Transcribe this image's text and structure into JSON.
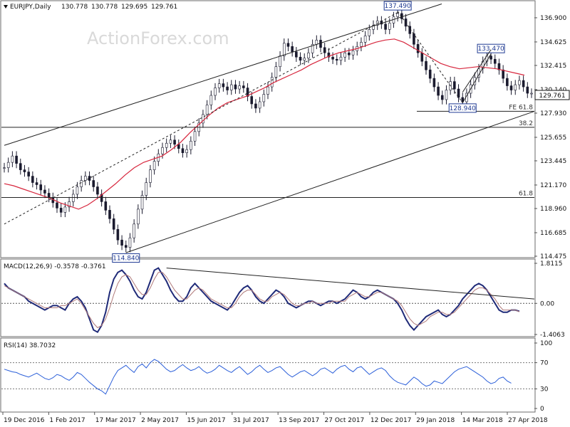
{
  "chart_data": [
    {
      "type": "candlestick",
      "panel": "price",
      "header": "EURJPY,Daily",
      "ohlc": [
        "130.778",
        "130.778",
        "129.695",
        "129.761"
      ],
      "watermark": "ActionForex.com",
      "current_price": "129.761",
      "ylim": [
        114.475,
        137.9
      ],
      "y_ticks": [
        "136.900",
        "134.625",
        "132.415",
        "130.140",
        "127.930",
        "125.655",
        "123.445",
        "121.170",
        "118.960",
        "116.685",
        "114.475"
      ],
      "x_ticks": [
        "19 Dec 2016",
        "1 Feb 2017",
        "17 Mar 2017",
        "2 May 2017",
        "15 Jun 2017",
        "31 Jul 2017",
        "13 Sep 2017",
        "27 Oct 2017",
        "12 Dec 2017",
        "29 Jan 2018",
        "14 Mar 2018",
        "27 Apr 2018"
      ],
      "swing_labels": [
        {
          "text": "114.840",
          "price": 114.84
        },
        {
          "text": "137.490",
          "price": 137.49
        },
        {
          "text": "128.940",
          "price": 128.94
        },
        {
          "text": "133.470",
          "price": 133.47
        }
      ],
      "levels": [
        {
          "label": "FE 61.8",
          "price": 128.1
        },
        {
          "label": "38.2",
          "price": 126.6
        },
        {
          "label": "61.8",
          "price": 120.0
        }
      ],
      "close_series": [
        122.8,
        123.3,
        123.9,
        123.2,
        122.6,
        122.4,
        122.0,
        121.4,
        121.2,
        120.7,
        120.4,
        120.0,
        119.5,
        119.0,
        118.6,
        119.1,
        119.6,
        120.3,
        121.0,
        121.6,
        122.0,
        121.6,
        121.0,
        120.3,
        119.6,
        118.8,
        118.0,
        117.0,
        116.0,
        115.5,
        115.3,
        116.2,
        117.5,
        118.9,
        120.2,
        121.4,
        122.6,
        123.4,
        124.1,
        124.7,
        125.1,
        125.4,
        125.0,
        124.6,
        124.2,
        124.5,
        125.3,
        126.2,
        127.0,
        127.8,
        128.7,
        129.6,
        130.3,
        130.7,
        130.4,
        130.1,
        130.6,
        130.2,
        130.5,
        130.3,
        129.5,
        128.8,
        128.4,
        129.0,
        129.7,
        130.4,
        131.3,
        132.3,
        133.3,
        134.5,
        134.2,
        133.7,
        133.2,
        132.9,
        133.1,
        133.6,
        134.4,
        134.8,
        134.1,
        133.6,
        133.2,
        133.0,
        132.9,
        133.2,
        133.6,
        133.4,
        133.8,
        134.2,
        134.6,
        135.2,
        135.8,
        136.2,
        136.6,
        136.3,
        135.8,
        136.4,
        137.0,
        137.3,
        136.8,
        136.1,
        135.4,
        134.4,
        133.6,
        132.8,
        132.0,
        131.2,
        130.4,
        129.6,
        129.2,
        130.1,
        130.9,
        130.2,
        129.4,
        129.0,
        129.8,
        130.6,
        131.3,
        132.1,
        132.8,
        133.3,
        133.0,
        132.6,
        132.0,
        131.2,
        130.5,
        130.1,
        130.6,
        131.0,
        130.4,
        129.8,
        129.8
      ],
      "moving_average_55": [
        121.3,
        121.1,
        120.8,
        120.5,
        120.2,
        119.9,
        119.5,
        119.2,
        118.9,
        119.3,
        119.9,
        120.6,
        121.3,
        122.1,
        122.8,
        123.3,
        123.6,
        123.9,
        124.5,
        125.2,
        126.1,
        126.9,
        127.7,
        128.4,
        128.9,
        129.2,
        129.5,
        129.9,
        130.3,
        130.8,
        131.2,
        131.6,
        132.0,
        132.5,
        132.9,
        133.3,
        133.6,
        133.8,
        134.0,
        134.3,
        134.6,
        134.8,
        134.9,
        134.6,
        134.1,
        133.6,
        133.1,
        132.6,
        132.3,
        132.1,
        132.2,
        132.3,
        132.2,
        132.1,
        131.9,
        131.7,
        131.5
      ]
    },
    {
      "type": "line",
      "panel": "macd",
      "header": "MACD(12,26,9) -0.3578 -0.3761",
      "ylim": [
        -1.4063,
        1.8115
      ],
      "y_ticks": [
        "1.8115",
        "0.00",
        "-1.4063"
      ],
      "series": [
        {
          "values": [
            0.9,
            0.7,
            0.6,
            0.5,
            0.4,
            0.3,
            0.1,
            0.0,
            -0.1,
            -0.2,
            -0.3,
            -0.2,
            -0.1,
            -0.1,
            -0.2,
            -0.3,
            0.0,
            0.2,
            0.3,
            0.1,
            -0.2,
            -0.7,
            -1.2,
            -1.3,
            -1.0,
            -0.4,
            0.5,
            1.1,
            1.4,
            1.5,
            1.3,
            1.0,
            0.6,
            0.3,
            0.2,
            0.5,
            1.0,
            1.5,
            1.6,
            1.3,
            1.0,
            0.6,
            0.3,
            0.1,
            0.1,
            0.3,
            0.7,
            0.9,
            0.7,
            0.5,
            0.3,
            0.1,
            0.0,
            -0.1,
            -0.2,
            -0.3,
            -0.1,
            0.2,
            0.5,
            0.7,
            0.8,
            0.6,
            0.3,
            0.1,
            0.0,
            0.2,
            0.4,
            0.6,
            0.5,
            0.3,
            0.0,
            -0.1,
            -0.2,
            -0.1,
            0.0,
            0.1,
            0.1,
            0.0,
            -0.1,
            0.0,
            0.1,
            0.1,
            0.0,
            0.1,
            0.2,
            0.4,
            0.6,
            0.5,
            0.3,
            0.2,
            0.3,
            0.5,
            0.6,
            0.5,
            0.4,
            0.3,
            0.2,
            0.0,
            -0.3,
            -0.7,
            -1.0,
            -1.2,
            -1.0,
            -0.8,
            -0.6,
            -0.5,
            -0.4,
            -0.3,
            -0.5,
            -0.6,
            -0.5,
            -0.3,
            -0.1,
            0.2,
            0.4,
            0.6,
            0.8,
            0.9,
            0.8,
            0.6,
            0.3,
            0.0,
            -0.3,
            -0.4,
            -0.4,
            -0.3,
            -0.3,
            -0.36
          ]
        },
        {
          "values": [
            0.8,
            0.7,
            0.6,
            0.5,
            0.4,
            0.3,
            0.2,
            0.1,
            0.0,
            -0.1,
            -0.2,
            -0.2,
            -0.2,
            -0.2,
            -0.1,
            -0.1,
            0.0,
            0.1,
            0.2,
            0.0,
            -0.3,
            -0.6,
            -0.9,
            -1.1,
            -1.0,
            -0.7,
            -0.2,
            0.4,
            0.9,
            1.2,
            1.3,
            1.2,
            0.9,
            0.6,
            0.4,
            0.4,
            0.7,
            1.1,
            1.4,
            1.4,
            1.2,
            0.9,
            0.6,
            0.4,
            0.2,
            0.2,
            0.4,
            0.6,
            0.7,
            0.6,
            0.4,
            0.2,
            0.1,
            0.0,
            -0.1,
            -0.2,
            -0.2,
            0.0,
            0.3,
            0.5,
            0.6,
            0.6,
            0.4,
            0.2,
            0.1,
            0.1,
            0.3,
            0.4,
            0.5,
            0.4,
            0.2,
            0.0,
            -0.1,
            -0.1,
            0.0,
            0.0,
            0.1,
            0.0,
            0.0,
            0.0,
            0.0,
            0.1,
            0.1,
            0.1,
            0.1,
            0.3,
            0.4,
            0.5,
            0.4,
            0.3,
            0.3,
            0.4,
            0.5,
            0.5,
            0.4,
            0.3,
            0.2,
            0.1,
            -0.1,
            -0.4,
            -0.7,
            -0.9,
            -1.0,
            -0.9,
            -0.8,
            -0.6,
            -0.5,
            -0.4,
            -0.4,
            -0.5,
            -0.5,
            -0.4,
            -0.2,
            0.0,
            0.2,
            0.4,
            0.6,
            0.7,
            0.7,
            0.6,
            0.4,
            0.2,
            -0.1,
            -0.3,
            -0.3,
            -0.3,
            -0.3,
            -0.38
          ]
        }
      ]
    },
    {
      "type": "line",
      "panel": "rsi",
      "header": "RSI(14) 38.7032",
      "ylim": [
        0,
        100
      ],
      "y_ticks": [
        "100",
        "70",
        "30",
        "0"
      ],
      "levels": [
        70,
        30
      ],
      "series": [
        {
          "values": [
            60,
            58,
            56,
            55,
            52,
            50,
            48,
            51,
            54,
            50,
            46,
            44,
            47,
            52,
            50,
            46,
            43,
            48,
            55,
            52,
            46,
            40,
            35,
            30,
            27,
            22,
            35,
            48,
            58,
            62,
            66,
            60,
            55,
            64,
            68,
            62,
            70,
            75,
            72,
            66,
            60,
            56,
            58,
            63,
            67,
            62,
            58,
            60,
            64,
            58,
            54,
            56,
            60,
            66,
            62,
            58,
            55,
            60,
            64,
            58,
            52,
            56,
            62,
            66,
            60,
            55,
            58,
            62,
            64,
            58,
            52,
            48,
            52,
            56,
            58,
            54,
            50,
            54,
            60,
            62,
            58,
            54,
            60,
            64,
            66,
            60,
            56,
            62,
            64,
            58,
            52,
            56,
            60,
            62,
            58,
            50,
            44,
            40,
            38,
            36,
            42,
            48,
            44,
            38,
            34,
            36,
            42,
            40,
            38,
            44,
            50,
            56,
            60,
            62,
            64,
            60,
            56,
            52,
            48,
            42,
            38,
            40,
            46,
            48,
            42,
            38.7
          ]
        }
      ]
    }
  ]
}
